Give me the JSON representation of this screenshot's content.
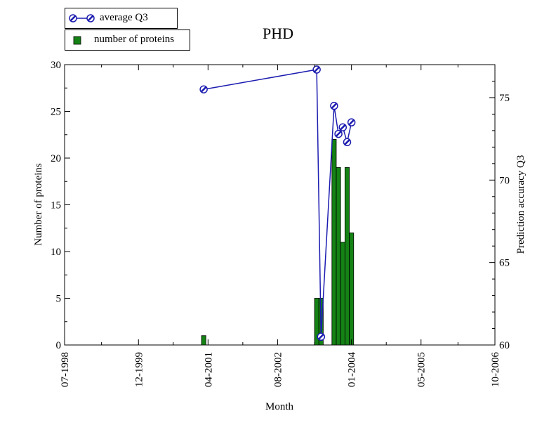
{
  "chart_data": {
    "title": "PHD",
    "xlabel": "Month",
    "ylabel_left": "Number of proteins",
    "ylabel_right": "Prediction accuracy Q3",
    "x_ticks": [
      "07-1998",
      "12-1999",
      "04-2001",
      "08-2002",
      "01-2004",
      "05-2005",
      "10-2006"
    ],
    "y_left": {
      "ticks": [
        0,
        5,
        10,
        15,
        20,
        25,
        30
      ],
      "range": [
        0,
        30
      ]
    },
    "y_right": {
      "ticks": [
        60,
        65,
        70,
        75
      ],
      "range": [
        60,
        77
      ]
    },
    "legend": [
      {
        "name": "average Q3",
        "type": "line"
      },
      {
        "name": "number of proteins",
        "type": "bar"
      }
    ],
    "bars": [
      {
        "month": "03-2001",
        "value": 1
      },
      {
        "month": "05-2003",
        "value": 5
      },
      {
        "month": "06-2003",
        "value": 5
      },
      {
        "month": "09-2003",
        "value": 22
      },
      {
        "month": "10-2003",
        "value": 19
      },
      {
        "month": "11-2003",
        "value": 11
      },
      {
        "month": "12-2003",
        "value": 19
      },
      {
        "month": "01-2004",
        "value": 12
      }
    ],
    "line": [
      {
        "month": "03-2001",
        "value": 75.5
      },
      {
        "month": "05-2003",
        "value": 76.7
      },
      {
        "month": "06-2003",
        "value": 60.5
      },
      {
        "month": "09-2003",
        "value": 74.5
      },
      {
        "month": "10-2003",
        "value": 72.8
      },
      {
        "month": "11-2003",
        "value": 73.2
      },
      {
        "month": "12-2003",
        "value": 72.3
      },
      {
        "month": "01-2004",
        "value": 73.5
      }
    ],
    "colors": {
      "bar": "#148214",
      "line": "#1c1cb0"
    }
  }
}
